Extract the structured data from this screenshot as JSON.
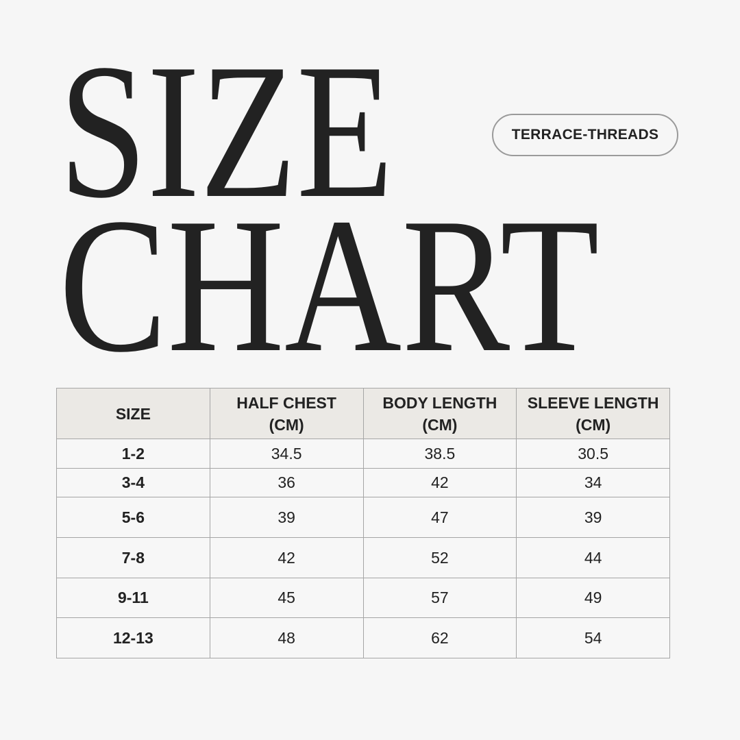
{
  "title": {
    "line1": "SIZE",
    "line2": "CHART"
  },
  "brand_badge": "TERRACE-THREADS",
  "table": {
    "headers": [
      {
        "line1": "SIZE",
        "line2": ""
      },
      {
        "line1": "HALF CHEST",
        "line2": "(CM)"
      },
      {
        "line1": "BODY LENGTH",
        "line2": "(CM)"
      },
      {
        "line1": "SLEEVE LENGTH",
        "line2": "(CM)"
      }
    ],
    "rows": [
      [
        "1-2",
        "34.5",
        "38.5",
        "30.5"
      ],
      [
        "3-4",
        "36",
        "42",
        "34"
      ],
      [
        "5-6",
        "39",
        "47",
        "39"
      ],
      [
        "7-8",
        "42",
        "52",
        "44"
      ],
      [
        "9-11",
        "45",
        "57",
        "49"
      ],
      [
        "12-13",
        "48",
        "62",
        "54"
      ]
    ]
  },
  "colors": {
    "background": "#f6f6f6",
    "header_fill": "#ebe9e5",
    "text": "#222222",
    "border": "#a5a5a5"
  }
}
